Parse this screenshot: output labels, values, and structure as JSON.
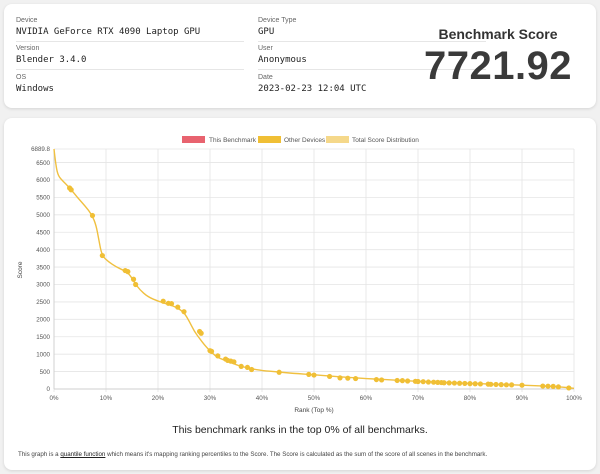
{
  "device": {
    "device_label": "Device",
    "device_value": "NVIDIA GeForce RTX 4090 Laptop GPU",
    "version_label": "Version",
    "version_value": "Blender 3.4.0",
    "os_label": "OS",
    "os_value": "Windows",
    "type_label": "Device Type",
    "type_value": "GPU",
    "user_label": "User",
    "user_value": "Anonymous",
    "date_label": "Date",
    "date_value": "2023-02-23 12:04 UTC"
  },
  "score": {
    "title": "Benchmark Score",
    "value": "7721.92"
  },
  "legend": {
    "this_benchmark": "This Benchmark",
    "other_devices": "Other Devices",
    "distribution": "Total Score Distribution"
  },
  "colors": {
    "this_benchmark": "#e8636f",
    "other_devices": "#f0bf35",
    "distribution": "#f5d88a",
    "line": "#f0c040"
  },
  "chart_data": {
    "type": "line",
    "xlabel": "Rank (Top %)",
    "ylabel": "Score",
    "xlim": [
      0,
      100
    ],
    "ylim": [
      0,
      6889.8
    ],
    "x_ticks": [
      "0%",
      "10%",
      "20%",
      "30%",
      "40%",
      "50%",
      "60%",
      "70%",
      "80%",
      "90%",
      "100%"
    ],
    "y_ticks": [
      "0",
      "500",
      "1000",
      "1500",
      "2000",
      "2500",
      "3000",
      "3500",
      "4000",
      "4500",
      "5000",
      "5500",
      "6000",
      "6500",
      "6889.8"
    ],
    "grid": true,
    "legend_position": "top-center",
    "distribution_curve": [
      [
        0,
        6889.8
      ],
      [
        0.3,
        6500
      ],
      [
        0.7,
        6150
      ],
      [
        1.5,
        6000
      ],
      [
        3,
        5780
      ],
      [
        4.5,
        5500
      ],
      [
        6,
        5250
      ],
      [
        7.3,
        5000
      ],
      [
        8.1,
        4700
      ],
      [
        8.6,
        4300
      ],
      [
        9.2,
        3830
      ],
      [
        10.5,
        3650
      ],
      [
        12,
        3500
      ],
      [
        13.5,
        3400
      ],
      [
        14.5,
        3300
      ],
      [
        15.5,
        3050
      ],
      [
        16.5,
        2850
      ],
      [
        18,
        2650
      ],
      [
        20,
        2520
      ],
      [
        22,
        2430
      ],
      [
        23.5,
        2350
      ],
      [
        25,
        2200
      ],
      [
        26,
        1950
      ],
      [
        27,
        1650
      ],
      [
        28,
        1450
      ],
      [
        29,
        1250
      ],
      [
        30,
        1100
      ],
      [
        31,
        950
      ],
      [
        32,
        870
      ],
      [
        33,
        820
      ],
      [
        34,
        760
      ],
      [
        35,
        700
      ],
      [
        36,
        650
      ],
      [
        38,
        580
      ],
      [
        40,
        530
      ],
      [
        43,
        490
      ],
      [
        46,
        450
      ],
      [
        50,
        410
      ],
      [
        55,
        350
      ],
      [
        60,
        300
      ],
      [
        65,
        260
      ],
      [
        70,
        220
      ],
      [
        75,
        190
      ],
      [
        80,
        160
      ],
      [
        85,
        135
      ],
      [
        90,
        110
      ],
      [
        95,
        80
      ],
      [
        98,
        50
      ],
      [
        100,
        20
      ]
    ],
    "other_devices": [
      [
        3,
        5770
      ],
      [
        3.3,
        5720
      ],
      [
        7.4,
        4980
      ],
      [
        9.3,
        3830
      ],
      [
        13.7,
        3400
      ],
      [
        14.2,
        3370
      ],
      [
        15.3,
        3150
      ],
      [
        15.7,
        3000
      ],
      [
        21,
        2520
      ],
      [
        22,
        2460
      ],
      [
        22.6,
        2450
      ],
      [
        23.8,
        2350
      ],
      [
        25,
        2220
      ],
      [
        28,
        1650
      ],
      [
        28.3,
        1600
      ],
      [
        30,
        1100
      ],
      [
        30.3,
        1080
      ],
      [
        31.5,
        950
      ],
      [
        33,
        860
      ],
      [
        33.4,
        820
      ],
      [
        34,
        800
      ],
      [
        34.6,
        780
      ],
      [
        36,
        650
      ],
      [
        37.2,
        620
      ],
      [
        38,
        560
      ],
      [
        43.3,
        480
      ],
      [
        49,
        420
      ],
      [
        50,
        400
      ],
      [
        53,
        360
      ],
      [
        55,
        320
      ],
      [
        56.5,
        310
      ],
      [
        58,
        300
      ],
      [
        62,
        270
      ],
      [
        63,
        260
      ],
      [
        66,
        245
      ],
      [
        67,
        240
      ],
      [
        68,
        230
      ],
      [
        69.5,
        220
      ],
      [
        70,
        215
      ],
      [
        71,
        210
      ],
      [
        72,
        200
      ],
      [
        73,
        195
      ],
      [
        73.8,
        190
      ],
      [
        74.5,
        185
      ],
      [
        75,
        180
      ],
      [
        76,
        175
      ],
      [
        77,
        170
      ],
      [
        78,
        165
      ],
      [
        79,
        160
      ],
      [
        80,
        155
      ],
      [
        81,
        150
      ],
      [
        82,
        145
      ],
      [
        83.5,
        140
      ],
      [
        84,
        135
      ],
      [
        85,
        130
      ],
      [
        86,
        125
      ],
      [
        87,
        120
      ],
      [
        88,
        118
      ],
      [
        90,
        110
      ],
      [
        94,
        85
      ],
      [
        95,
        80
      ],
      [
        96,
        75
      ],
      [
        97,
        60
      ],
      [
        99,
        30
      ]
    ]
  },
  "summary": {
    "rank_text": "This benchmark ranks in the top 0% of all benchmarks.",
    "footnote_pre": "This graph is a ",
    "footnote_link": "quantile function",
    "footnote_post": " which means it's mapping ranking percentiles to the Score. The Score is calculated as the sum of the score of all scenes in the benchmark."
  }
}
